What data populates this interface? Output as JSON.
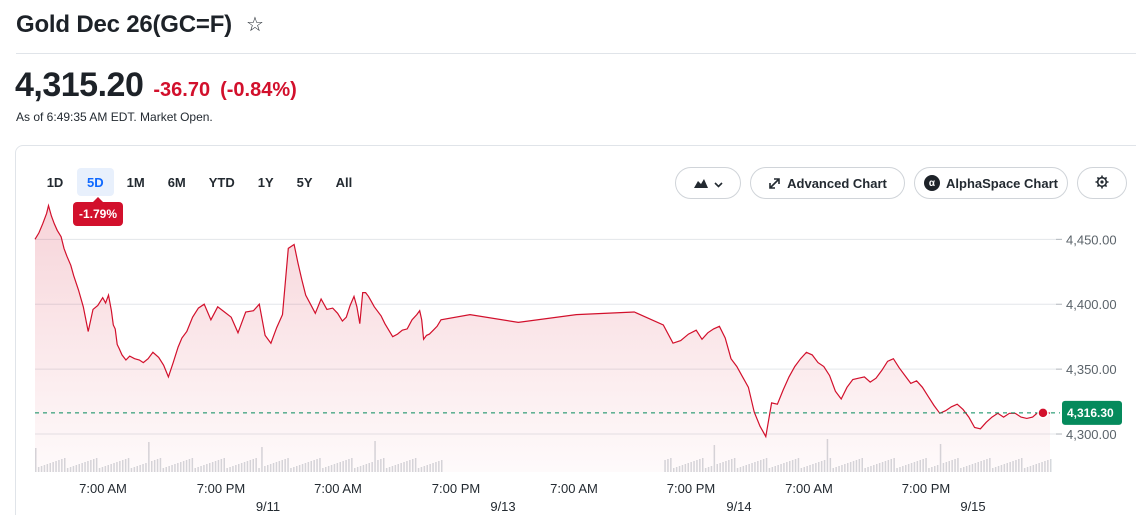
{
  "header": {
    "title": "Gold Dec 26(GC=F)",
    "favorite_icon": "star-outline-icon"
  },
  "quote": {
    "price": "4,315.20",
    "change": "-36.70",
    "change_pct": "(-0.84%)",
    "as_of": "As of 6:49:35 AM EDT. Market Open.",
    "down_color": "#d2102c"
  },
  "range_tabs": [
    {
      "label": "1D",
      "active": false
    },
    {
      "label": "5D",
      "active": true
    },
    {
      "label": "1M",
      "active": false
    },
    {
      "label": "6M",
      "active": false
    },
    {
      "label": "YTD",
      "active": false
    },
    {
      "label": "1Y",
      "active": false
    },
    {
      "label": "5Y",
      "active": false
    },
    {
      "label": "All",
      "active": false
    }
  ],
  "range_change_badge": "-1.79%",
  "toolbar": {
    "chart_type_icon": "mountain-chart-icon",
    "advanced_chart_label": "Advanced Chart",
    "advanced_chart_icon": "expand-arrows-icon",
    "alphaspace_label": "AlphaSpace Chart",
    "alphaspace_icon": "alpha-logo-icon",
    "settings_icon": "gear-icon"
  },
  "chart_data": {
    "type": "area",
    "ylim": [
      4290,
      4478
    ],
    "y_ticks": [
      4300,
      4350,
      4400,
      4450
    ],
    "y_tick_labels": [
      "4,300.00",
      "4,350.00",
      "4,400.00",
      "4,450.00"
    ],
    "x_tick_labels": [
      "7:00 AM",
      "7:00 PM",
      "7:00 AM",
      "7:00 PM",
      "7:00 AM",
      "7:00 PM",
      "7:00 AM",
      "7:00 PM"
    ],
    "date_labels": [
      "9/11",
      "9/13",
      "9/14",
      "9/15"
    ],
    "current_value": 4316.3,
    "current_label": "4,316.30",
    "line_color": "#d2102c",
    "current_color": "#058a5c",
    "series_index": [
      0,
      4,
      8,
      12,
      14,
      17,
      20,
      23,
      27,
      30,
      33,
      37,
      40,
      45,
      50,
      55,
      60,
      65,
      70,
      73,
      76,
      79,
      81,
      83,
      85,
      87,
      90,
      94,
      98,
      103,
      108,
      112,
      117,
      122,
      128,
      133,
      138,
      143,
      148,
      152,
      157,
      163,
      169,
      175,
      182,
      189,
      196,
      203,
      210,
      218,
      226,
      232,
      238,
      244,
      250,
      256,
      262,
      268,
      272,
      276,
      280,
      285,
      290,
      296,
      302,
      308,
      313,
      318,
      322,
      326,
      330,
      333,
      336,
      339,
      342,
      345,
      348,
      351,
      354,
      358,
      362,
      366,
      370,
      375,
      380,
      385,
      390,
      395,
      398,
      400,
      402,
      405,
      408,
      412,
      416,
      420,
      450,
      500,
      560,
      620,
      650,
      660,
      668,
      676,
      684,
      690,
      696,
      702,
      708,
      714,
      720,
      726,
      732,
      738,
      744,
      750,
      756,
      762,
      768,
      774,
      780,
      786,
      792,
      798,
      804,
      810,
      816,
      822,
      828,
      834,
      840,
      846,
      852,
      858,
      864,
      870,
      876,
      882,
      888,
      894,
      900,
      906,
      912,
      918,
      924,
      930,
      936,
      942,
      948,
      954,
      960,
      966,
      972,
      978,
      984,
      990,
      996,
      1002,
      1008,
      1014,
      1020,
      1026,
      1032,
      1038,
      1044,
      1050
    ],
    "values": [
      4450,
      4455,
      4462,
      4470,
      4476,
      4468,
      4462,
      4457,
      4452,
      4443,
      4437,
      4430,
      4422,
      4411,
      4398,
      4379,
      4396,
      4399,
      4405,
      4401,
      4407,
      4395,
      4384,
      4381,
      4369,
      4366,
      4361,
      4357,
      4360,
      4358,
      4357,
      4355,
      4358,
      4363,
      4359,
      4353,
      4344,
      4355,
      4367,
      4374,
      4379,
      4390,
      4397,
      4400,
      4388,
      4398,
      4394,
      4390,
      4378,
      4394,
      4395,
      4400,
      4376,
      4370,
      4382,
      4392,
      4443,
      4446,
      4432,
      4419,
      4407,
      4400,
      4393,
      4404,
      4396,
      4397,
      4393,
      4387,
      4390,
      4399,
      4406,
      4398,
      4385,
      4409,
      4409,
      4406,
      4402,
      4398,
      4395,
      4391,
      4385,
      4380,
      4375,
      4377,
      4380,
      4381,
      4388,
      4392,
      4395,
      4388,
      4373,
      4376,
      4377,
      4380,
      4383,
      4388,
      4392,
      4386,
      4392,
      4394,
      4384,
      4370,
      4372,
      4377,
      4380,
      4373,
      4378,
      4381,
      4383,
      4374,
      4358,
      4352,
      4344,
      4336,
      4317,
      4306,
      4298,
      4324,
      4323,
      4334,
      4344,
      4352,
      4358,
      4363,
      4361,
      4355,
      4352,
      4345,
      4333,
      4327,
      4336,
      4342,
      4343,
      4344,
      4340,
      4343,
      4349,
      4356,
      4358,
      4351,
      4345,
      4339,
      4341,
      4336,
      4329,
      4322,
      4316,
      4318,
      4321,
      4323,
      4319,
      4313,
      4305,
      4304,
      4309,
      4313,
      4316,
      4313,
      4316,
      4316,
      4313,
      4312,
      4313,
      4317,
      4318,
      4316
    ]
  }
}
